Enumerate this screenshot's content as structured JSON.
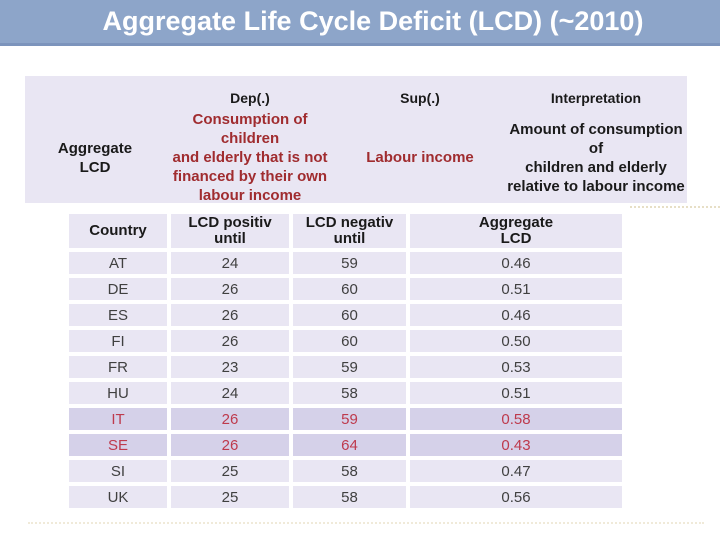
{
  "title": "Aggregate Life Cycle Deficit (LCD) (~2010)",
  "definition_panel": {
    "column_headers": {
      "dep": "Dep(.)",
      "sup": "Sup(.)",
      "interpretation": "Interpretation"
    },
    "row_label": "Aggregate\nLCD",
    "dep_description": "Consumption of children\nand elderly that is not\nfinanced by their own\nlabour income",
    "sup_value": "Labour income",
    "interpretation_description": "Amount of consumption of\nchildren and elderly\nrelative to labour income"
  },
  "country_table": {
    "headers": [
      "Country",
      "LCD positiv\nuntil",
      "LCD negativ\nuntil",
      "Aggregate\nLCD"
    ],
    "rows": [
      {
        "country": "AT",
        "lcd_positiv_until": "24",
        "lcd_negativ_until": "59",
        "aggregate_lcd": "0.46",
        "highlighted": false
      },
      {
        "country": "DE",
        "lcd_positiv_until": "26",
        "lcd_negativ_until": "60",
        "aggregate_lcd": "0.51",
        "highlighted": false
      },
      {
        "country": "ES",
        "lcd_positiv_until": "26",
        "lcd_negativ_until": "60",
        "aggregate_lcd": "0.46",
        "highlighted": false
      },
      {
        "country": "FI",
        "lcd_positiv_until": "26",
        "lcd_negativ_until": "60",
        "aggregate_lcd": "0.50",
        "highlighted": false
      },
      {
        "country": "FR",
        "lcd_positiv_until": "23",
        "lcd_negativ_until": "59",
        "aggregate_lcd": "0.53",
        "highlighted": false
      },
      {
        "country": "HU",
        "lcd_positiv_until": "24",
        "lcd_negativ_until": "58",
        "aggregate_lcd": "0.51",
        "highlighted": false
      },
      {
        "country": "IT",
        "lcd_positiv_until": "26",
        "lcd_negativ_until": "59",
        "aggregate_lcd": "0.58",
        "highlighted": true
      },
      {
        "country": "SE",
        "lcd_positiv_until": "26",
        "lcd_negativ_until": "64",
        "aggregate_lcd": "0.43",
        "highlighted": true
      },
      {
        "country": "SI",
        "lcd_positiv_until": "25",
        "lcd_negativ_until": "58",
        "aggregate_lcd": "0.47",
        "highlighted": false
      },
      {
        "country": "UK",
        "lcd_positiv_until": "25",
        "lcd_negativ_until": "58",
        "aggregate_lcd": "0.56",
        "highlighted": false
      }
    ]
  },
  "colors": {
    "title_bar": "#8DA5C9",
    "title_bar_border": "#7C94BC",
    "panel_background": "#E9E6F3",
    "highlight_row_background": "#D5D1E9",
    "highlight_text": "#BE3A4D",
    "emphasis_text": "#A02C2F"
  }
}
